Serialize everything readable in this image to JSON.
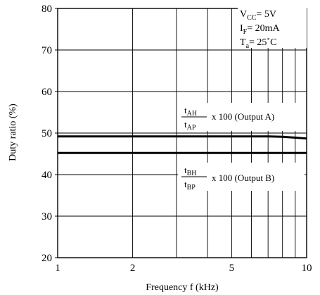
{
  "chart_data": {
    "type": "line",
    "title": "",
    "xlabel": "Frequency f (kHz)",
    "ylabel": "Duty ratio (%)",
    "xscale": "log",
    "xlim": [
      1,
      10
    ],
    "ylim": [
      20,
      80
    ],
    "x_ticks": [
      1,
      2,
      5,
      10
    ],
    "x_tick_labels": [
      "1",
      "2",
      "5",
      "10"
    ],
    "y_ticks": [
      20,
      30,
      40,
      50,
      60,
      70,
      80
    ],
    "y_tick_labels": [
      "20",
      "30",
      "40",
      "50",
      "60",
      "70",
      "80"
    ],
    "grid": true,
    "conditions": {
      "vcc": {
        "main": "V",
        "sub": "CC",
        "rest": "= 5V"
      },
      "if": {
        "main": "I",
        "sub": "F",
        "rest": "= 20mA"
      },
      "ta": {
        "main": "T",
        "sub": "a",
        "rest": "= 25˚C"
      }
    },
    "series": [
      {
        "x": [
          1,
          2,
          5,
          7,
          8,
          9,
          10
        ],
        "y": [
          49.2,
          49.2,
          49.2,
          49.2,
          49.1,
          48.9,
          48.7
        ],
        "annotation": {
          "num_main": "t",
          "num_sub": "AH",
          "den_main": "t",
          "den_sub": "AP",
          "rest": "x 100 (Output A)"
        }
      },
      {
        "x": [
          1,
          2,
          5,
          10
        ],
        "y": [
          45.2,
          45.2,
          45.2,
          45.2
        ],
        "annotation": {
          "num_main": "t",
          "num_sub": "BH",
          "den_main": "t",
          "den_sub": "BP",
          "rest": "x 100 (Output B)"
        }
      }
    ]
  }
}
